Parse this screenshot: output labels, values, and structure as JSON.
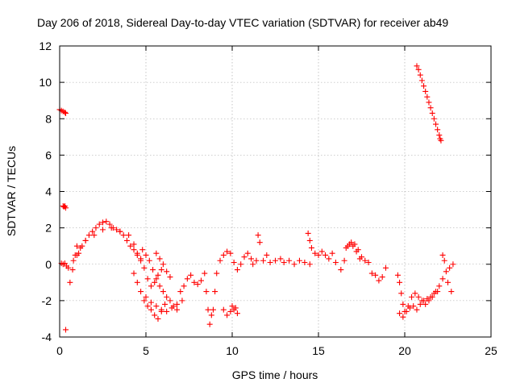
{
  "chart_data": {
    "type": "scatter",
    "title": "Day 206 of 2018, Sidereal Day-to-day VTEC variation (SDTVAR) for receiver ab49",
    "xlabel": "GPS time / hours",
    "ylabel": "SDTVAR / TECUs",
    "xlim": [
      0,
      25
    ],
    "ylim": [
      -4,
      12
    ],
    "xticks": [
      0,
      5,
      10,
      15,
      20,
      25
    ],
    "yticks": [
      -4,
      -2,
      0,
      2,
      4,
      6,
      8,
      10,
      12
    ],
    "grid": true,
    "marker": "plus",
    "color": "#ff0000",
    "series": [
      {
        "name": "SDTVAR",
        "x": [
          0.0,
          0.1,
          0.2,
          0.3,
          0.35,
          0.2,
          0.25,
          0.3,
          0.35,
          0.1,
          0.2,
          0.3,
          0.4,
          0.5,
          0.35,
          0.6,
          0.75,
          0.9,
          1.0,
          1.1,
          1.3,
          1.5,
          1.7,
          1.9,
          2.1,
          2.3,
          2.5,
          2.7,
          2.9,
          3.1,
          3.3,
          3.5,
          3.7,
          3.9,
          4.1,
          4.3,
          4.5,
          4.7,
          4.9,
          5.1,
          5.3,
          5.5,
          5.7,
          5.9,
          0.8,
          1.0,
          1.2,
          1.5,
          2.0,
          2.5,
          3.0,
          3.5,
          4.0,
          4.3,
          4.5,
          4.7,
          4.3,
          4.5,
          4.7,
          4.9,
          5.1,
          5.3,
          5.5,
          5.7,
          5.9,
          6.1,
          4.8,
          5.0,
          5.2,
          5.4,
          5.6,
          5.8,
          6.0,
          6.2,
          6.4,
          6.6,
          6.8,
          7.0,
          7.2,
          7.4,
          7.6,
          7.8,
          8.0,
          8.2,
          8.4,
          5.0,
          5.3,
          5.6,
          5.9,
          6.2,
          6.5,
          6.8,
          7.1,
          5.6,
          5.8,
          6.0,
          6.2,
          6.4,
          8.5,
          8.6,
          8.7,
          8.8,
          8.9,
          9.0,
          9.1,
          9.3,
          9.5,
          9.7,
          9.9,
          10.1,
          10.3,
          10.5,
          10.7,
          10.9,
          11.1,
          9.5,
          9.7,
          9.9,
          10.0,
          10.1,
          10.2,
          10.3,
          11.2,
          11.4,
          11.5,
          11.6,
          11.8,
          12.0,
          12.2,
          12.5,
          12.8,
          13.0,
          13.3,
          13.6,
          13.9,
          14.2,
          14.5,
          14.4,
          14.5,
          14.6,
          14.8,
          15.0,
          15.2,
          15.4,
          15.6,
          15.8,
          16.0,
          16.3,
          16.5,
          16.7,
          16.9,
          17.1,
          17.3,
          17.5,
          17.7,
          17.9,
          18.1,
          18.3,
          18.5,
          18.7,
          18.9,
          16.6,
          16.8,
          17.0,
          17.2,
          17.4,
          19.6,
          19.7,
          19.8,
          19.9,
          20.0,
          20.2,
          20.4,
          20.6,
          20.8,
          21.0,
          21.2,
          21.4,
          21.6,
          21.8,
          22.0,
          22.2,
          22.4,
          22.6,
          22.8,
          19.7,
          19.9,
          20.1,
          20.3,
          20.5,
          20.7,
          20.9,
          21.1,
          21.3,
          21.5,
          21.7,
          21.9,
          22.2,
          22.3,
          22.5,
          22.7,
          20.7,
          20.8,
          20.9,
          21.0,
          21.1,
          21.2,
          21.3,
          21.4,
          21.5,
          21.6,
          21.7,
          21.8,
          21.9,
          22.0,
          22.05,
          22.1
        ],
        "y": [
          8.5,
          8.45,
          8.4,
          8.35,
          8.3,
          3.2,
          3.15,
          3.2,
          3.1,
          0.05,
          0.0,
          0.05,
          -0.1,
          -0.2,
          -3.6,
          -1.0,
          -0.3,
          0.5,
          1.0,
          0.6,
          1.0,
          1.3,
          1.6,
          1.8,
          2.0,
          2.2,
          2.3,
          2.35,
          2.2,
          2.0,
          1.9,
          1.8,
          1.6,
          1.3,
          1.0,
          0.8,
          0.5,
          0.2,
          -0.2,
          -0.8,
          -1.2,
          -1.0,
          -0.6,
          -0.3,
          0.2,
          0.5,
          0.9,
          1.3,
          1.6,
          1.9,
          2.0,
          1.8,
          1.6,
          1.1,
          0.6,
          0.3,
          -0.5,
          -1.0,
          -1.5,
          -2.0,
          -2.3,
          -2.5,
          -2.8,
          -3.0,
          -2.6,
          -2.2,
          0.8,
          0.5,
          0.2,
          -0.3,
          -0.8,
          -1.2,
          -1.5,
          -1.8,
          -2.0,
          -2.3,
          -2.5,
          -1.5,
          -1.2,
          -0.8,
          -0.6,
          -1.0,
          -1.1,
          -0.9,
          -0.5,
          -1.8,
          -2.1,
          -2.3,
          -2.5,
          -2.6,
          -2.4,
          -2.2,
          -2.0,
          0.6,
          0.3,
          0.0,
          -0.4,
          -0.7,
          -1.5,
          -2.5,
          -3.3,
          -2.8,
          -2.5,
          -1.5,
          -0.5,
          0.2,
          0.5,
          0.7,
          0.6,
          0.1,
          -0.3,
          0.0,
          0.4,
          0.6,
          0.3,
          -2.5,
          -2.8,
          -2.6,
          -2.3,
          -2.5,
          -2.4,
          -2.7,
          0.0,
          0.2,
          1.6,
          1.2,
          0.2,
          0.5,
          0.1,
          0.2,
          0.3,
          0.1,
          0.2,
          0.0,
          0.2,
          0.1,
          0.0,
          1.7,
          1.3,
          0.9,
          0.6,
          0.5,
          0.7,
          0.5,
          0.3,
          0.6,
          0.1,
          -0.3,
          0.2,
          1.0,
          1.2,
          1.1,
          0.8,
          0.4,
          0.2,
          0.1,
          -0.5,
          -0.6,
          -0.9,
          -0.7,
          -0.2,
          0.9,
          1.1,
          1.0,
          0.7,
          0.3,
          -0.6,
          -1.0,
          -1.6,
          -2.2,
          -2.6,
          -2.3,
          -1.8,
          -1.6,
          -1.8,
          -2.0,
          -2.2,
          -2.0,
          -1.8,
          -1.5,
          -1.2,
          -0.8,
          -0.4,
          -0.2,
          0.0,
          -2.7,
          -2.9,
          -2.6,
          -2.4,
          -2.3,
          -2.5,
          -2.2,
          -2.0,
          -1.9,
          -1.8,
          -1.6,
          -1.5,
          0.5,
          0.2,
          -1.0,
          -1.5,
          10.9,
          10.7,
          10.4,
          10.1,
          9.8,
          9.5,
          9.2,
          8.9,
          8.6,
          8.3,
          8.0,
          7.7,
          7.4,
          7.1,
          6.9,
          6.8
        ]
      }
    ]
  }
}
